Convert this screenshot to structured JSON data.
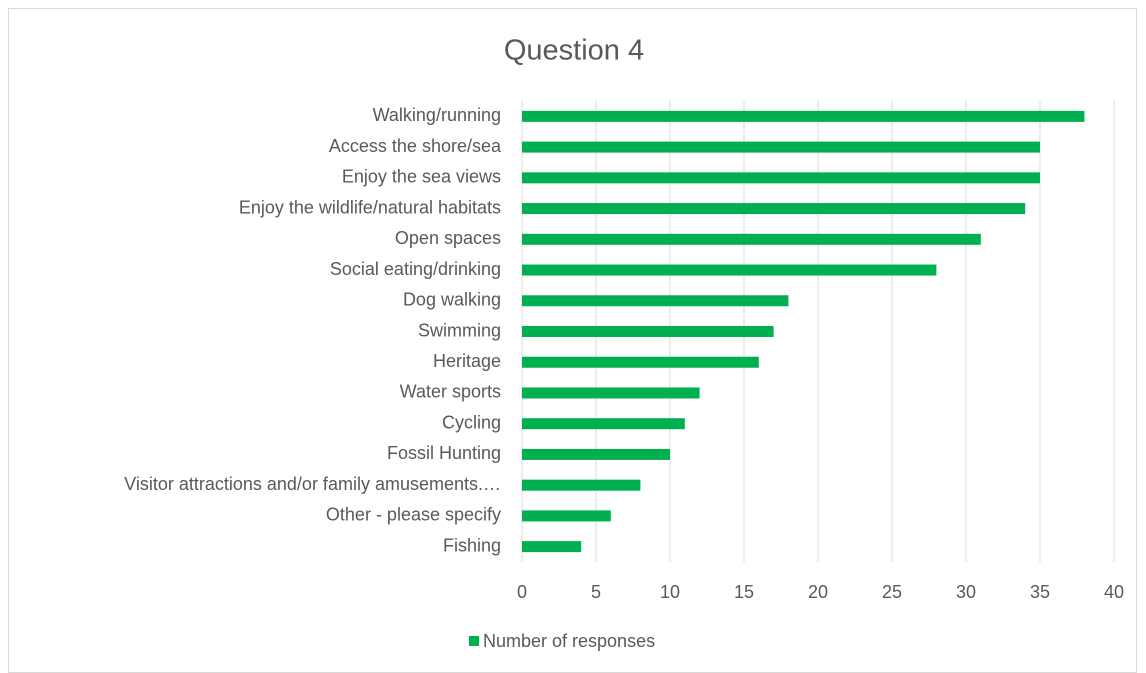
{
  "chart_data": {
    "type": "hbar",
    "title": "Question 4",
    "categories": [
      "Walking/running",
      "Access the shore/sea",
      "Enjoy the sea views",
      "Enjoy the wildlife/natural habitats",
      "Open spaces",
      "Social eating/drinking",
      "Dog walking",
      "Swimming",
      "Heritage",
      "Water sports",
      "Cycling",
      "Fossil Hunting",
      "Visitor attractions and/or family amusements.…",
      "Other - please specify",
      "Fishing"
    ],
    "series": [
      {
        "name": "Number of responses",
        "color": "#00b050",
        "values": [
          38,
          35,
          35,
          34,
          31,
          28,
          18,
          17,
          16,
          12,
          11,
          10,
          8,
          6,
          4
        ]
      }
    ],
    "xlim": [
      0,
      40
    ],
    "xticks": [
      0,
      5,
      10,
      15,
      20,
      25,
      30,
      35,
      40
    ],
    "grid": true,
    "legend": "bottom"
  }
}
